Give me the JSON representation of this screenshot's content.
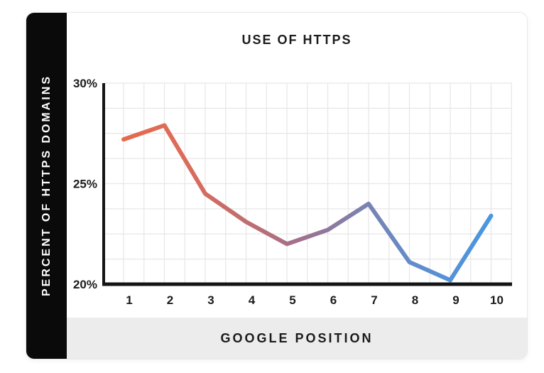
{
  "card": {
    "sidebar_bg": "#0a0a0a",
    "footer_bg": "#ececec"
  },
  "chart_data": {
    "type": "line",
    "title": "USE OF HTTPS",
    "xlabel": "GOOGLE POSITION",
    "ylabel": "PERCENT OF HTTPS DOMAINS",
    "x": [
      1,
      2,
      3,
      4,
      5,
      6,
      7,
      8,
      9,
      10
    ],
    "values": [
      27.2,
      27.9,
      24.5,
      23.1,
      22.0,
      22.7,
      24.0,
      21.1,
      20.2,
      23.4
    ],
    "x_tick_labels": [
      "1",
      "2",
      "3",
      "4",
      "5",
      "6",
      "7",
      "8",
      "9",
      "10"
    ],
    "y_ticks": [
      30,
      25,
      20
    ],
    "y_tick_labels": [
      "30%",
      "25%",
      "20%"
    ],
    "ylim": [
      20,
      30
    ],
    "grid": true,
    "minor_y_step": 1.25,
    "minor_x_step": 0.5,
    "legend": "none",
    "line_width": 6,
    "line_gradient": [
      "#E56A4D",
      "#DC6C59",
      "#C06D71",
      "#9C7290",
      "#7883B4",
      "#5A90D1",
      "#4897E2"
    ],
    "axis_color": "#141414",
    "grid_color": "#e7e7e7",
    "text_color": "#1b1b1b"
  }
}
